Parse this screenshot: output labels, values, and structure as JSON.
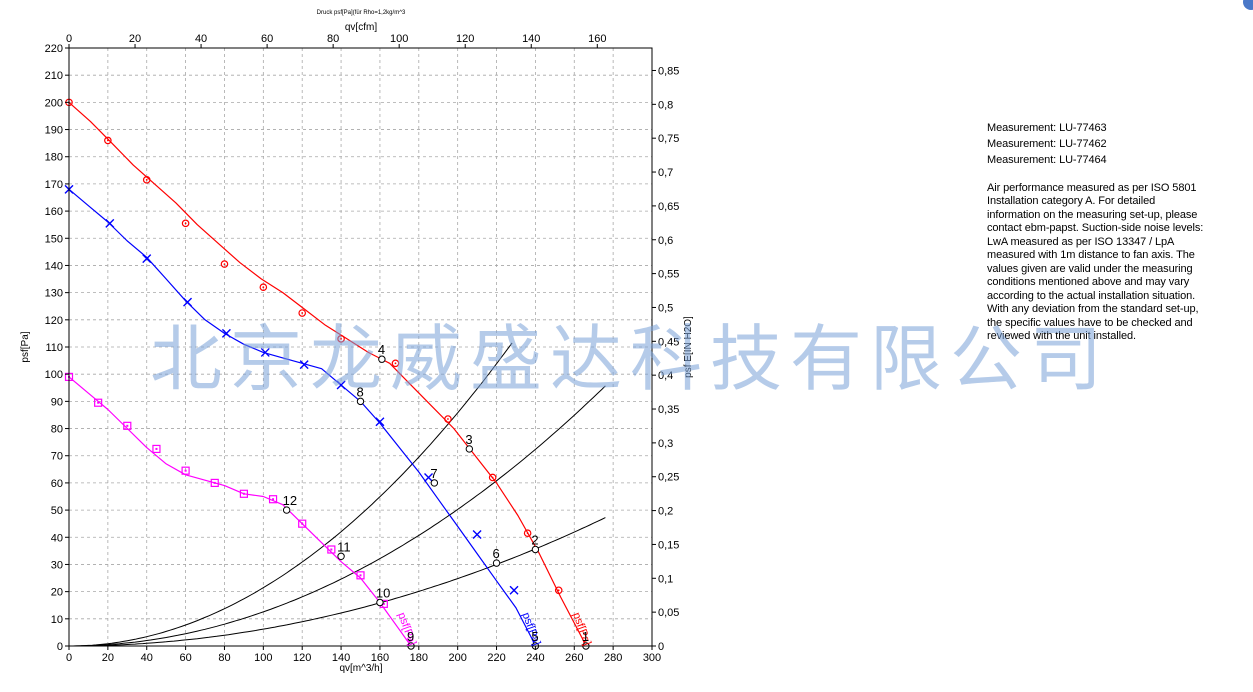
{
  "watermark": "北京龙威盛达科技有限公司",
  "side_panel": {
    "measurements": [
      "Measurement: LU-77463",
      "Measurement: LU-77462",
      "Measurement: LU-77464"
    ],
    "description": "Air performance measured as per ISO 5801 Installation category A. For detailed information on the measuring set-up, please contact ebm-papst. Suction-side noise levels: LwA measured as per ISO 13347 / LpA measured with 1m distance to fan axis. The values given are valid under the measuring conditions mentioned above and may vary according to the actual installation situation. With any deviation from the standard set-up, the specific values have to be checked and reviewed with the unit installed."
  },
  "colors": {
    "red": "#ff0000",
    "blue": "#0000ff",
    "magenta": "#ff00ff",
    "black": "#000000",
    "grid": "#a8a8a8"
  },
  "chart_data": {
    "type": "line",
    "title": "Druck psf[Pa](für Rho=1,2kg/m^3",
    "xlabel": "qv[m^3/h]",
    "x2label": "qv[cfm]",
    "ylabel": "psf[Pa]",
    "y2label": "psf  E[IN H2O]",
    "xlim": [
      0,
      300
    ],
    "ylim": [
      0,
      220
    ],
    "x2lim": [
      0,
      176.57
    ],
    "y2lim": [
      0,
      0.8832
    ],
    "grid": true,
    "x_ticks": [
      "0",
      "20",
      "40",
      "60",
      "80",
      "100",
      "120",
      "140",
      "160",
      "180",
      "200",
      "220",
      "240",
      "260",
      "280",
      "300"
    ],
    "y_ticks": [
      "0",
      "10",
      "20",
      "30",
      "40",
      "50",
      "60",
      "70",
      "80",
      "90",
      "100",
      "110",
      "120",
      "130",
      "140",
      "150",
      "160",
      "170",
      "180",
      "190",
      "200",
      "210",
      "220"
    ],
    "x2_ticks": [
      "0",
      "20",
      "40",
      "60",
      "80",
      "100",
      "120",
      "140",
      "160"
    ],
    "y2_ticks": [
      "0",
      "0,05",
      "0,1",
      "0,15",
      "0,2",
      "0,25",
      "0,3",
      "0,35",
      "0,4",
      "0,45",
      "0,5",
      "0,55",
      "0,6",
      "0,65",
      "0,7",
      "0,75",
      "0,8",
      "0,85"
    ],
    "series": [
      {
        "label": "psf[Pa]",
        "color": "red",
        "marker": "circle",
        "x": [
          0,
          11,
          22,
          33,
          44,
          55,
          66,
          77,
          88,
          99,
          110,
          121,
          132,
          143,
          154,
          165,
          176,
          187,
          198,
          209,
          220,
          231,
          242,
          253,
          264,
          266
        ],
        "y": [
          200,
          193,
          185,
          177,
          170,
          163,
          155,
          148,
          141,
          135,
          130,
          124,
          118,
          113,
          108,
          104,
          96,
          88,
          80,
          70,
          60,
          48,
          34,
          18,
          3,
          0
        ],
        "marker_x": [
          0,
          20,
          40,
          60,
          80,
          100,
          120,
          140,
          168,
          195,
          218,
          236,
          252
        ],
        "marker_y": [
          200,
          186,
          171.5,
          155.5,
          140.5,
          132,
          122.5,
          113,
          104,
          83.5,
          62,
          41.5,
          20.5
        ]
      },
      {
        "label": "psf[Pa]",
        "color": "blue",
        "marker": "x",
        "x": [
          0,
          10,
          20,
          30,
          40,
          50,
          60,
          70,
          80,
          90,
          100,
          110,
          120,
          130,
          140,
          150,
          160,
          170,
          180,
          190,
          200,
          210,
          220,
          230,
          238,
          240
        ],
        "y": [
          168,
          162,
          156,
          149,
          143,
          135,
          127,
          120,
          115,
          111,
          108,
          106,
          104,
          102,
          96,
          90,
          82,
          73,
          64,
          54,
          44,
          34,
          24,
          14,
          3,
          0
        ],
        "marker_x": [
          0,
          21,
          40,
          61,
          81,
          101,
          121,
          140,
          160,
          185,
          210,
          229
        ],
        "marker_y": [
          168,
          155.5,
          142.5,
          126.5,
          115,
          108,
          103.5,
          96,
          82.5,
          62,
          41,
          20.5
        ]
      },
      {
        "label": "psf[Pa]",
        "color": "magenta",
        "marker": "square",
        "x": [
          0,
          10,
          20,
          30,
          40,
          50,
          60,
          70,
          80,
          90,
          100,
          110,
          120,
          130,
          140,
          150,
          160,
          170,
          176
        ],
        "y": [
          99,
          93,
          87,
          80,
          73,
          67,
          63,
          61,
          59,
          56,
          55,
          52,
          45,
          38,
          31,
          25,
          16,
          6,
          0
        ],
        "marker_x": [
          0,
          15,
          30,
          45,
          60,
          75,
          90,
          105,
          120,
          135,
          150,
          162
        ],
        "marker_y": [
          99,
          89.5,
          81,
          72.5,
          64.5,
          60,
          56,
          54,
          45,
          35.5,
          26,
          15.5
        ]
      }
    ],
    "system_curves": [
      {
        "k": 0.002145,
        "x_max": 228
      },
      {
        "k": 0.001256,
        "x_max": 277
      },
      {
        "k": 0.00062,
        "x_max": 277
      }
    ],
    "operating_points": [
      {
        "label": "1",
        "x": 266,
        "y": 0
      },
      {
        "label": "2",
        "x": 240,
        "y": 35.5
      },
      {
        "label": "3",
        "x": 206,
        "y": 72.5
      },
      {
        "label": "4",
        "x": 161,
        "y": 105.5
      },
      {
        "label": "5",
        "x": 240,
        "y": 0
      },
      {
        "label": "6",
        "x": 220,
        "y": 30.5
      },
      {
        "label": "7",
        "x": 188,
        "y": 60
      },
      {
        "label": "8",
        "x": 150,
        "y": 90
      },
      {
        "label": "9",
        "x": 176,
        "y": 0
      },
      {
        "label": "10",
        "x": 160,
        "y": 16
      },
      {
        "label": "11",
        "x": 140,
        "y": 33
      },
      {
        "label": "12",
        "x": 112,
        "y": 50
      }
    ]
  }
}
